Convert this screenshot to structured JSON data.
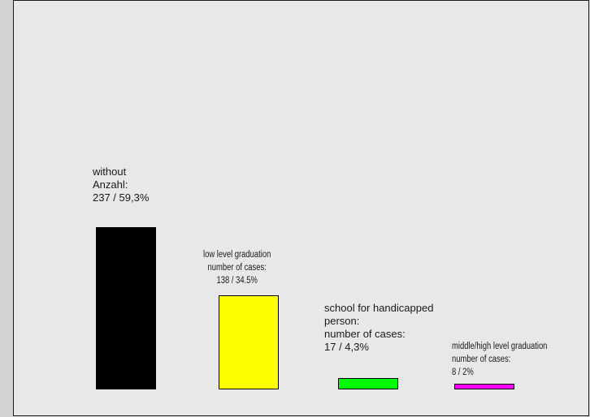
{
  "chart_data": {
    "type": "bar",
    "categories": [
      "without",
      "low level graduation",
      "school for handicapped person",
      "middle/high level graduation"
    ],
    "values": [
      237,
      138,
      17,
      8
    ],
    "percent_labels": [
      "59,3%",
      "34.5%",
      "4,3%",
      "2%"
    ],
    "colors": [
      "#000000",
      "#ffff00",
      "#00ff00",
      "#ff00ff"
    ],
    "labels": [
      {
        "lines": [
          "without",
          "Anzahl:",
          "237 / 59,3%"
        ]
      },
      {
        "lines": [
          "low level graduation",
          "number of cases:",
          "138 / 34.5%"
        ]
      },
      {
        "lines": [
          "school for handicapped",
          "person:",
          "number of cases:",
          "17 / 4,3%"
        ]
      },
      {
        "lines": [
          "middle/high level graduation",
          "number of cases:",
          "8 / 2%"
        ]
      }
    ],
    "grid": false,
    "legend": "none"
  }
}
